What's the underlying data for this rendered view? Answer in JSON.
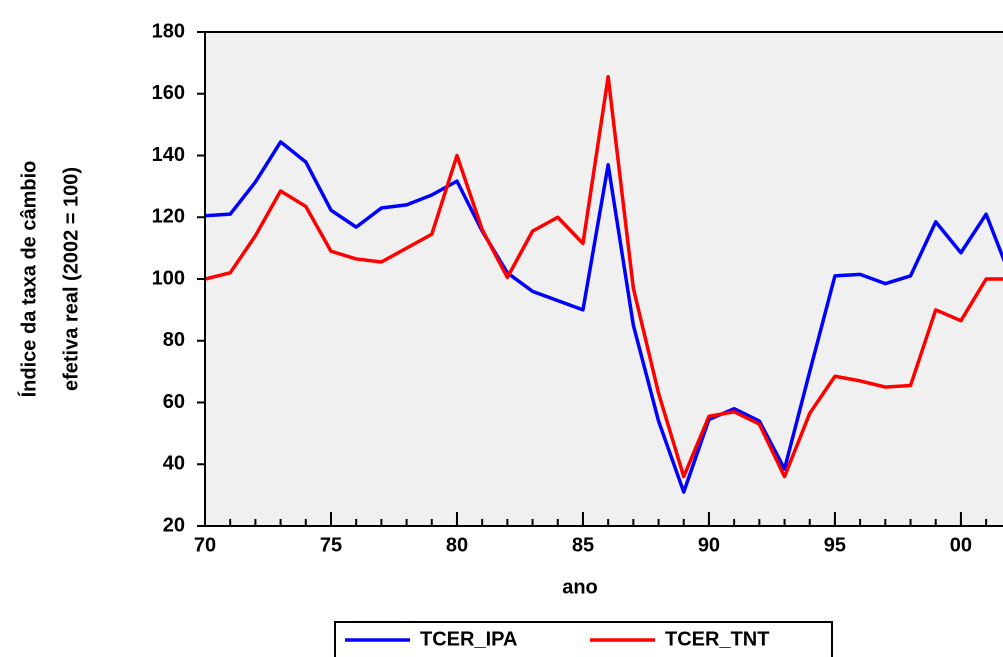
{
  "chart_data": {
    "type": "line",
    "xlabel": "ano",
    "ylabel": [
      "Índice da taxa de câmbio",
      "efetiva real (2002 = 100)"
    ],
    "x": [
      1970,
      1971,
      1972,
      1973,
      1974,
      1975,
      1976,
      1977,
      1978,
      1979,
      1980,
      1981,
      1982,
      1983,
      1984,
      1985,
      1986,
      1987,
      1988,
      1989,
      1990,
      1991,
      1992,
      1993,
      1994,
      1995,
      1996,
      1997,
      1998,
      1999,
      2000,
      2001,
      2002
    ],
    "series": [
      {
        "name": "TCER_IPA",
        "color": "#0000ff",
        "values": [
          120.5,
          121,
          131.4,
          144.4,
          137.9,
          122.3,
          116.8,
          123,
          124,
          127.2,
          131.7,
          115.5,
          102,
          96,
          93,
          90,
          137,
          85,
          54,
          31,
          54.5,
          58,
          54,
          38.5,
          70,
          101,
          101.5,
          98.5,
          101,
          118.5,
          108.5,
          121,
          100
        ]
      },
      {
        "name": "TCER_TNT",
        "color": "#ff0000",
        "values": [
          100,
          102,
          114,
          128.5,
          123.5,
          109,
          106.5,
          105.5,
          110,
          114.5,
          140,
          116,
          100.5,
          115.5,
          120,
          111.5,
          165.5,
          97,
          63,
          36,
          55.5,
          57,
          53,
          36,
          56.5,
          68.5,
          67,
          65,
          65.5,
          90,
          86.5,
          100,
          100
        ]
      }
    ],
    "xlim": [
      1970,
      2001.67
    ],
    "xticks": [
      {
        "value": 1970,
        "label": "70"
      },
      {
        "value": 1975,
        "label": "75"
      },
      {
        "value": 1980,
        "label": "80"
      },
      {
        "value": 1985,
        "label": "85"
      },
      {
        "value": 1990,
        "label": "90"
      },
      {
        "value": 1995,
        "label": "95"
      },
      {
        "value": 2000,
        "label": "00"
      }
    ],
    "ylim": [
      20,
      180
    ],
    "yticks": [
      20,
      40,
      60,
      80,
      100,
      120,
      140,
      160,
      180
    ],
    "grid": false,
    "background": "#f0f0f0"
  }
}
